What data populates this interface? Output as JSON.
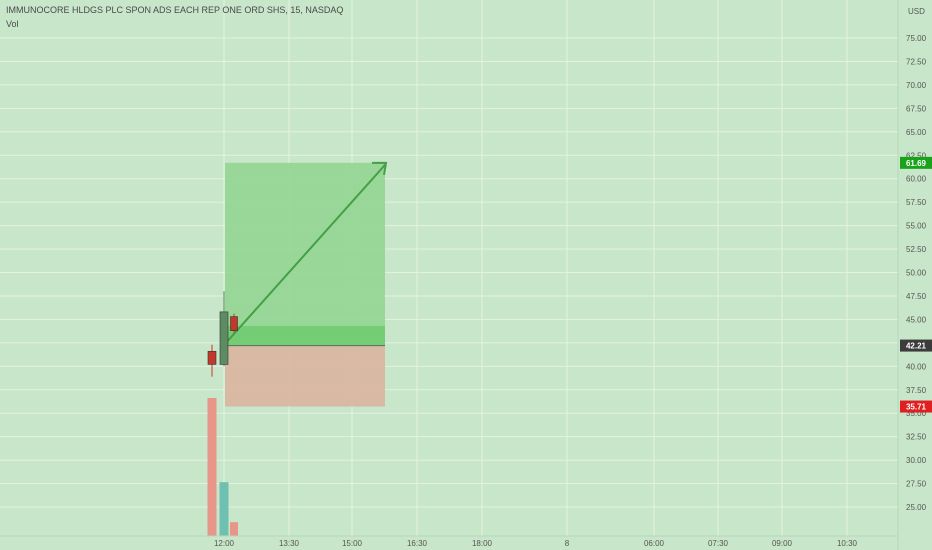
{
  "header": {
    "title": "IMMUNOCORE HLDGS PLC SPON ADS EACH REP ONE ORD SHS, 15, NASDAQ",
    "indicator": "Vol"
  },
  "colors": {
    "background": "#c8e6c9",
    "grid": "#e4f2e4",
    "axis_text": "#555555",
    "up_candle": "#5d8c63",
    "down_candle": "#c0392b",
    "volume_down": "#e8958a",
    "volume_up": "#6fc0b0",
    "profit_zone": "#8fd48f",
    "profit_band": "#6ccb6c",
    "loss_zone": "#d9b6a2",
    "arrow": "#43a047",
    "tag_target": "#1aa31a",
    "tag_current": "#3c3c3c",
    "tag_stop": "#e02020"
  },
  "chart_data": {
    "type": "candlestick",
    "currency_label": "USD",
    "y_ticks": [
      "75.00",
      "72.50",
      "70.00",
      "67.50",
      "65.00",
      "62.50",
      "60.00",
      "57.50",
      "55.00",
      "52.50",
      "50.00",
      "47.50",
      "45.00",
      "42.50",
      "40.00",
      "37.50",
      "35.00",
      "32.50",
      "30.00",
      "27.50",
      "25.00"
    ],
    "x_ticks": [
      "12:00",
      "13:30",
      "15:00",
      "16:30",
      "18:00",
      "8",
      "06:00",
      "07:30",
      "09:00",
      "10:30"
    ],
    "ylim": [
      22.5,
      77.5
    ],
    "candles": [
      {
        "open": 41.6,
        "high": 42.3,
        "low": 38.9,
        "close": 40.2,
        "direction": "down"
      },
      {
        "open": 40.2,
        "high": 48.0,
        "low": 40.0,
        "close": 45.8,
        "direction": "up"
      },
      {
        "open": 45.3,
        "high": 45.6,
        "low": 43.6,
        "close": 43.8,
        "direction": "down"
      }
    ],
    "volume": [
      {
        "relative": 1.0,
        "direction": "down"
      },
      {
        "relative": 0.39,
        "direction": "up"
      },
      {
        "relative": 0.1,
        "direction": "down"
      }
    ],
    "long_position": {
      "entry": 42.21,
      "target": 61.69,
      "stop": 35.71
    },
    "price_labels": {
      "target": "61.69",
      "current": "42.21",
      "stop": "35.71"
    }
  }
}
